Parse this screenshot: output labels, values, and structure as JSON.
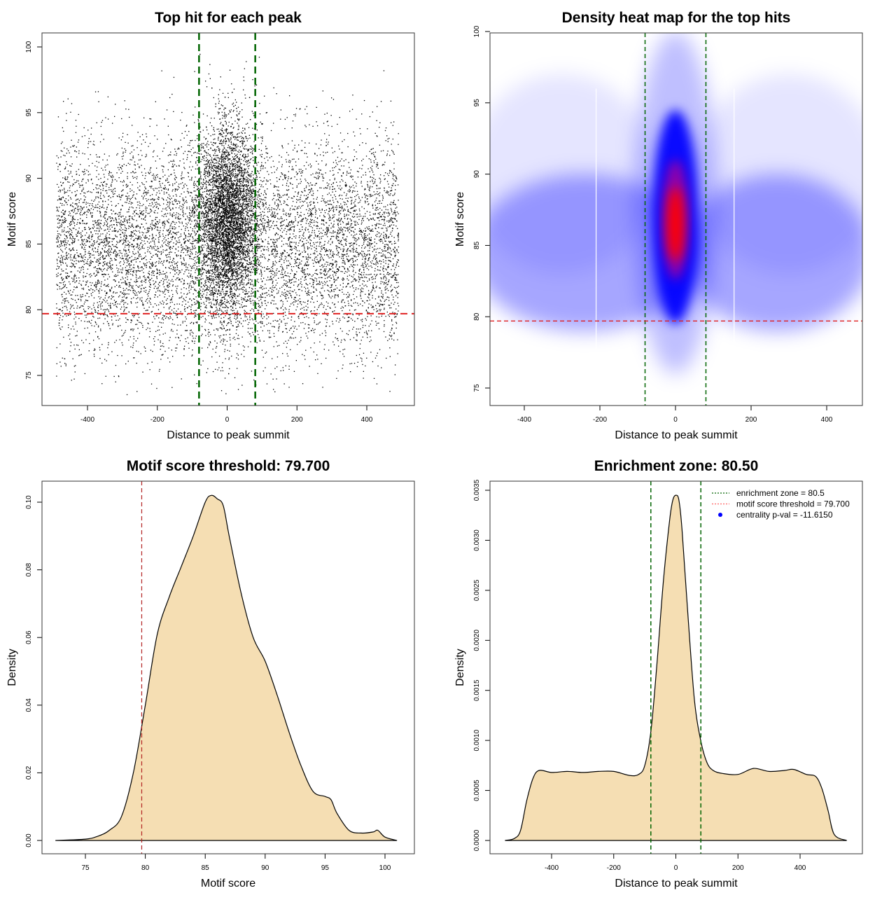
{
  "chart_data": [
    {
      "type": "scatter",
      "title": "Top hit for each peak",
      "xlabel": "Distance to peak summit",
      "ylabel": "Motif score",
      "xlim": [
        -500,
        500
      ],
      "ylim": [
        73,
        101
      ],
      "xticks": [
        "-400",
        "-200",
        "0",
        "200",
        "400"
      ],
      "xtick_values": [
        -400,
        -200,
        0,
        200,
        400
      ],
      "yticks": [
        "75",
        "80",
        "85",
        "90",
        "95",
        "100"
      ],
      "ytick_values": [
        75,
        80,
        85,
        90,
        95,
        100
      ],
      "approx_points": 14000,
      "background_distribution": {
        "x_range": [
          -490,
          490
        ],
        "score_mean": 85,
        "score_sd": 4
      },
      "central_distribution": {
        "x_mean": 0,
        "x_sd": 40,
        "score_mean": 87,
        "score_sd": 3.5
      },
      "vlines": [
        -80.5,
        80.5
      ],
      "hline": 79.7,
      "vline_color": "#006400",
      "hline_color": "#e02020"
    },
    {
      "type": "heatmap",
      "title": "Density heat map for the top hits",
      "xlabel": "Distance to peak summit",
      "ylabel": "Motif score",
      "xlim": [
        -500,
        490
      ],
      "ylim": [
        73.8,
        100.1
      ],
      "xticks": [
        "-400",
        "-200",
        "0",
        "200",
        "400"
      ],
      "xtick_values": [
        -400,
        -200,
        0,
        200,
        400
      ],
      "yticks": [
        "75",
        "80",
        "85",
        "90",
        "95",
        "100"
      ],
      "ytick_values": [
        75,
        80,
        85,
        90,
        95,
        100
      ],
      "peak_density_location": {
        "x": 0,
        "score": 86.5
      },
      "vlines": [
        -80.5,
        80.5
      ],
      "hline": 79.7,
      "colors": {
        "low": "#ffffff",
        "mid": "#0000ff",
        "high": "#ff0000"
      }
    },
    {
      "type": "area",
      "title": "Motif score threshold: 79.700",
      "xlabel": "Motif score",
      "ylabel": "Density",
      "xlim": [
        71.5,
        102
      ],
      "ylim": [
        -0.002,
        0.108
      ],
      "xticks": [
        "75",
        "80",
        "85",
        "90",
        "95",
        "100"
      ],
      "xtick_values": [
        75,
        80,
        85,
        90,
        95,
        100
      ],
      "yticks": [
        "0.00",
        "0.02",
        "0.04",
        "0.06",
        "0.08",
        "0.10"
      ],
      "ytick_values": [
        0,
        0.02,
        0.04,
        0.06,
        0.08,
        0.1
      ],
      "x": [
        72.5,
        75,
        76,
        77,
        78,
        79,
        80,
        81,
        82,
        83,
        84,
        85,
        85.5,
        86,
        86.5,
        87,
        88,
        89,
        90,
        91,
        92,
        93,
        94,
        95,
        95.5,
        96,
        97,
        98,
        99,
        99.4,
        100,
        101
      ],
      "y": [
        0,
        0.0004,
        0.0012,
        0.003,
        0.007,
        0.02,
        0.04,
        0.061,
        0.072,
        0.081,
        0.09,
        0.1,
        0.102,
        0.101,
        0.099,
        0.09,
        0.073,
        0.06,
        0.053,
        0.043,
        0.032,
        0.022,
        0.0145,
        0.013,
        0.012,
        0.008,
        0.003,
        0.0022,
        0.0025,
        0.003,
        0.001,
        0
      ],
      "vline": 79.7,
      "fill": "#f5deb3",
      "vline_color": "#b22222"
    },
    {
      "type": "area",
      "title": "Enrichment zone: 80.50",
      "xlabel": "Distance to peak summit",
      "ylabel": "Density",
      "xlim": [
        -600,
        600
      ],
      "ylim": [
        -0.00013,
        0.00359
      ],
      "xticks": [
        "-400",
        "-200",
        "0",
        "200",
        "400"
      ],
      "xtick_values": [
        -400,
        -200,
        0,
        200,
        400
      ],
      "yticks": [
        "0.0000",
        "0.0005",
        "0.0010",
        "0.0015",
        "0.0020",
        "0.0025",
        "0.0030",
        "0.0035"
      ],
      "ytick_values": [
        0,
        0.0005,
        0.001,
        0.0015,
        0.002,
        0.0025,
        0.003,
        0.0035
      ],
      "x": [
        -550,
        -520,
        -500,
        -480,
        -460,
        -440,
        -400,
        -350,
        -300,
        -250,
        -200,
        -150,
        -120,
        -100,
        -80,
        -60,
        -40,
        -20,
        -10,
        0,
        10,
        20,
        40,
        60,
        80,
        100,
        120,
        150,
        200,
        250,
        300,
        350,
        380,
        420,
        450,
        470,
        490,
        510,
        550
      ],
      "y": [
        0,
        2e-05,
        0.0001,
        0.0004,
        0.00062,
        0.0007,
        0.00068,
        0.00069,
        0.00068,
        0.00069,
        0.00069,
        0.00065,
        0.00066,
        0.00075,
        0.0011,
        0.0018,
        0.0026,
        0.0032,
        0.0034,
        0.00345,
        0.0034,
        0.0031,
        0.0022,
        0.0014,
        0.001,
        0.00078,
        0.0007,
        0.00067,
        0.00066,
        0.00072,
        0.00069,
        0.0007,
        0.00071,
        0.00066,
        0.00064,
        0.00052,
        0.0003,
        6e-05,
        0
      ],
      "vlines": [
        -80.5,
        80.5
      ],
      "fill": "#f5deb3",
      "legend": {
        "position": "top-right",
        "entries": [
          {
            "label": "enrichment zone = 80.5",
            "color": "#006400",
            "style": "dotted-line"
          },
          {
            "label": "motif score threshold = 79.700",
            "color": "#ff6060",
            "style": "dotted-line"
          },
          {
            "label": "centrality p-val = -11.6150",
            "color": "#0000ff",
            "style": "point"
          }
        ]
      }
    }
  ]
}
